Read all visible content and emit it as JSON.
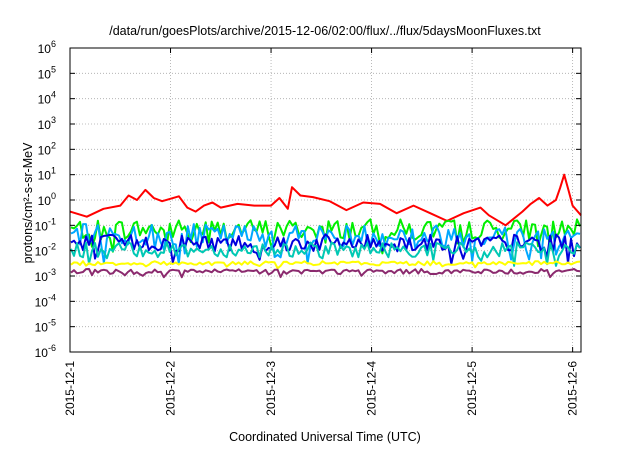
{
  "chart_data": {
    "type": "line",
    "title": "/data/run/goesPlots/archive/2015-12-06/02:00/flux/../flux/5daysMoonFluxes.txt",
    "xlabel": "Coordinated Universal Time (UTC)",
    "ylabel": "protons/cm²-s-sr-MeV",
    "y_scale": "log",
    "ylim": [
      1e-06,
      1000000.0
    ],
    "y_tick_exponents": [
      -6,
      -5,
      -4,
      -3,
      -2,
      -1,
      0,
      1,
      2,
      3,
      4,
      5,
      6
    ],
    "xlim": [
      "2015-12-01T00:00",
      "2015-12-06T02:00"
    ],
    "x_ticks": [
      "2015-12-1",
      "2015-12-2",
      "2015-12-3",
      "2015-12-4",
      "2015-12-5",
      "2015-12-6"
    ],
    "grid": true,
    "legend": "none",
    "series": [
      {
        "color": "#ff0000",
        "points": [
          [
            "2015-12-01T00:00",
            0.35
          ],
          [
            "2015-12-01T04:00",
            0.22
          ],
          [
            "2015-12-01T08:00",
            0.45
          ],
          [
            "2015-12-01T12:00",
            0.6
          ],
          [
            "2015-12-01T14:00",
            1.5
          ],
          [
            "2015-12-01T16:00",
            1.0
          ],
          [
            "2015-12-01T18:00",
            2.5
          ],
          [
            "2015-12-01T20:00",
            1.2
          ],
          [
            "2015-12-01T22:00",
            0.9
          ],
          [
            "2015-12-02T02:00",
            1.4
          ],
          [
            "2015-12-02T04:00",
            0.5
          ],
          [
            "2015-12-02T06:00",
            0.35
          ],
          [
            "2015-12-02T08:00",
            0.6
          ],
          [
            "2015-12-02T10:00",
            0.8
          ],
          [
            "2015-12-02T12:00",
            0.5
          ],
          [
            "2015-12-02T16:00",
            0.7
          ],
          [
            "2015-12-02T20:00",
            0.6
          ],
          [
            "2015-12-03T00:00",
            0.6
          ],
          [
            "2015-12-03T02:00",
            1.2
          ],
          [
            "2015-12-03T04:00",
            0.45
          ],
          [
            "2015-12-03T05:00",
            3.2
          ],
          [
            "2015-12-03T07:00",
            1.5
          ],
          [
            "2015-12-03T10:00",
            1.3
          ],
          [
            "2015-12-03T14:00",
            0.9
          ],
          [
            "2015-12-03T18:00",
            0.4
          ],
          [
            "2015-12-03T22:00",
            0.8
          ],
          [
            "2015-12-04T02:00",
            0.7
          ],
          [
            "2015-12-04T06:00",
            0.3
          ],
          [
            "2015-12-04T10:00",
            0.6
          ],
          [
            "2015-12-04T14:00",
            0.3
          ],
          [
            "2015-12-04T18:00",
            0.15
          ],
          [
            "2015-12-04T22:00",
            0.3
          ],
          [
            "2015-12-05T02:00",
            0.5
          ],
          [
            "2015-12-05T04:00",
            0.25
          ],
          [
            "2015-12-05T08:00",
            0.1
          ],
          [
            "2015-12-05T12:00",
            0.35
          ],
          [
            "2015-12-05T14:00",
            0.7
          ],
          [
            "2015-12-05T16:00",
            1.2
          ],
          [
            "2015-12-05T18:00",
            0.6
          ],
          [
            "2015-12-05T20:00",
            1.0
          ],
          [
            "2015-12-05T21:00",
            3.0
          ],
          [
            "2015-12-05T22:00",
            10
          ],
          [
            "2015-12-05T23:00",
            2.5
          ],
          [
            "2015-12-06T00:00",
            0.6
          ],
          [
            "2015-12-06T02:00",
            0.25
          ]
        ]
      },
      {
        "color": "#00ee00",
        "base": 0.07,
        "amp": 0.4
      },
      {
        "color": "#00a8ff",
        "base": 0.04,
        "amp": 0.45
      },
      {
        "color": "#0000dd",
        "base": 0.02,
        "amp": 0.35
      },
      {
        "color": "#00c8b4",
        "base": 0.011,
        "amp": 0.3
      },
      {
        "color": "#ffff00",
        "base": 0.0032,
        "amp": 0.08
      },
      {
        "color": "#8b2a6e",
        "base": 0.0015,
        "amp": 0.1
      }
    ]
  }
}
